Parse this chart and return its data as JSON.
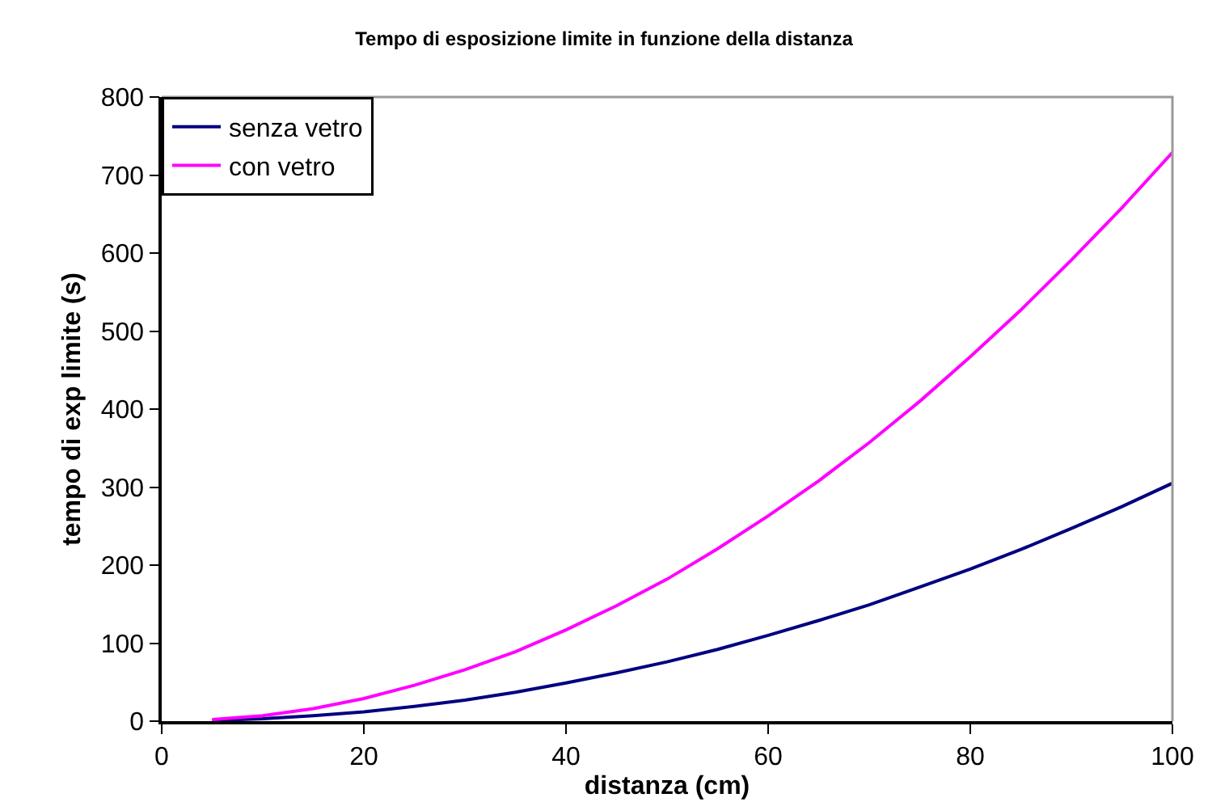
{
  "chart_data": {
    "type": "line",
    "title": "Tempo di esposizione limite in funzione della distanza",
    "xlabel": "distanza (cm)",
    "ylabel": "tempo di exp limite (s)",
    "x": [
      5,
      10,
      15,
      20,
      25,
      30,
      35,
      40,
      45,
      50,
      55,
      60,
      65,
      70,
      75,
      80,
      85,
      90,
      95,
      100
    ],
    "series": [
      {
        "name": "senza vetro",
        "color": "#000080",
        "values": [
          1,
          3,
          7,
          12,
          19,
          27,
          37,
          49,
          62,
          76,
          92,
          110,
          129,
          149,
          172,
          195,
          220,
          247,
          275,
          305
        ]
      },
      {
        "name": "con vetro",
        "color": "#ff00ff",
        "values": [
          2,
          7,
          16,
          29,
          46,
          66,
          89,
          117,
          148,
          182,
          221,
          263,
          308,
          357,
          410,
          467,
          527,
          591,
          658,
          729
        ]
      }
    ],
    "xlim": [
      0,
      100
    ],
    "xticks": [
      0,
      20,
      40,
      60,
      80,
      100
    ],
    "ylim": [
      0,
      800
    ],
    "yticks": [
      0,
      100,
      200,
      300,
      400,
      500,
      600,
      700,
      800
    ],
    "grid": false,
    "legend": "top left",
    "marker": "none",
    "line_style": "solid"
  }
}
